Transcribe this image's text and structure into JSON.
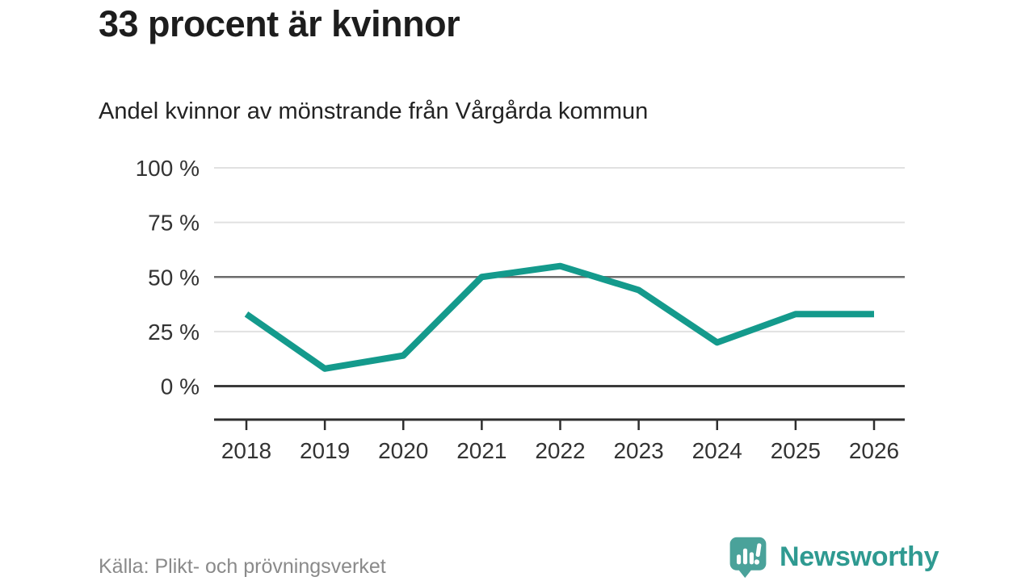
{
  "chart_data": {
    "type": "line",
    "title": "33 procent är kvinnor",
    "subtitle": "Andel kvinnor av mönstrande från Vårgårda kommun",
    "categories": [
      "2018",
      "2019",
      "2020",
      "2021",
      "2022",
      "2023",
      "2024",
      "2025",
      "2026"
    ],
    "series": [
      {
        "name": "Andel kvinnor av mönstrande",
        "values": [
          33,
          8,
          14,
          50,
          55,
          44,
          20,
          33,
          33
        ]
      }
    ],
    "unit": "%",
    "ylim": [
      0,
      100
    ],
    "yticks": [
      0,
      25,
      50,
      75,
      100
    ],
    "ytick_labels": [
      "0 %",
      "25 %",
      "50 %",
      "75 %",
      "100 %"
    ],
    "emphasized_gridlines": [
      0,
      50
    ],
    "grid": true,
    "legend": "none",
    "line_color": "#149a8c",
    "colors": {
      "gridline_light": "#e1e1e1",
      "gridline_mid": "#6b6b6b",
      "gridline_dark": "#3b3b3b",
      "axis": "#2e2e2e",
      "tick_text": "#333333"
    }
  },
  "footer": {
    "source": "Källa: Plikt- och prövningsverket",
    "logo_text": "Newsworthy",
    "logo_text_color": "#2f9a91",
    "logo_mark_color": "#4aa29a"
  }
}
